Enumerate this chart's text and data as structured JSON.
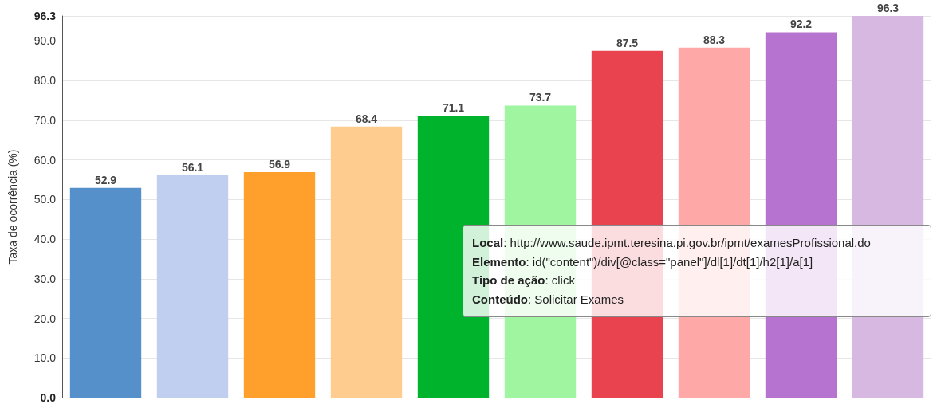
{
  "chart_data": {
    "type": "bar",
    "ylabel": "Taxa de ocorrência (%)",
    "categories": [
      null,
      null,
      null,
      null,
      null,
      null,
      null,
      null,
      null,
      null
    ],
    "values": [
      52.9,
      56.1,
      56.9,
      68.4,
      71.1,
      73.7,
      87.5,
      88.3,
      92.2,
      96.3
    ],
    "colors": [
      "#5690cb",
      "#c0cff0",
      "#ff9f2c",
      "#ffcc90",
      "#00b32c",
      "#a0f5a0",
      "#e8434f",
      "#ffa8a8",
      "#b674d0",
      "#d6b8e0"
    ],
    "ylim": [
      0,
      96.3
    ],
    "yticks": [
      {
        "value": 0,
        "label": "0.0"
      },
      {
        "value": 10,
        "label": "10.0"
      },
      {
        "value": 20,
        "label": "20.0"
      },
      {
        "value": 30,
        "label": "30.0"
      },
      {
        "value": 40,
        "label": "40.0"
      },
      {
        "value": 50,
        "label": "50.0"
      },
      {
        "value": 60,
        "label": "60.0"
      },
      {
        "value": 70,
        "label": "70.0"
      },
      {
        "value": 80,
        "label": "80.0"
      },
      {
        "value": 90,
        "label": "90.0"
      },
      96.3
    ],
    "grid": "y",
    "data_labels": true,
    "annotations": [
      "Local: http://www.saude.ipmt.teresina.pi.gov.br/ipmt/examesProfissional.do",
      "Elemento: id(\"content\")/div[@class=\"panel\"]/dl[1]/dt[1]/h2[1]/a[1]",
      "Tipo de ação: click",
      "Conteúdo: Solicitar Exames"
    ]
  }
}
